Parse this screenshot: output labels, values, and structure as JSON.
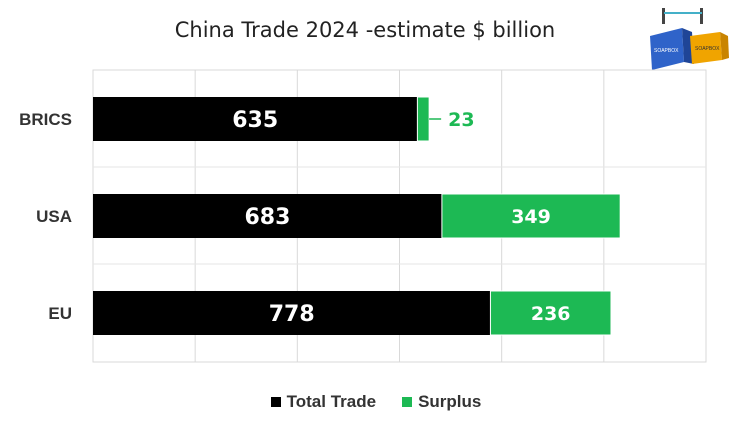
{
  "chart_data": {
    "type": "bar",
    "orientation": "horizontal",
    "stacked": true,
    "title": "China Trade 2024 -estimate $ billion",
    "categories": [
      "BRICS",
      "USA",
      "EU"
    ],
    "series": [
      {
        "name": "Total Trade",
        "color": "#000000",
        "values": [
          635,
          683,
          778
        ]
      },
      {
        "name": "Surplus",
        "color": "#1db954",
        "values": [
          23,
          349,
          236
        ]
      }
    ],
    "xlim": [
      0,
      1200
    ],
    "grid": true,
    "legend_position": "bottom",
    "xlabel": "",
    "ylabel": ""
  },
  "logo": {
    "label": "SOAPBOX",
    "colors": {
      "left": "#2f63c9",
      "right": "#f0a400",
      "crane": "#44b0c8"
    }
  }
}
